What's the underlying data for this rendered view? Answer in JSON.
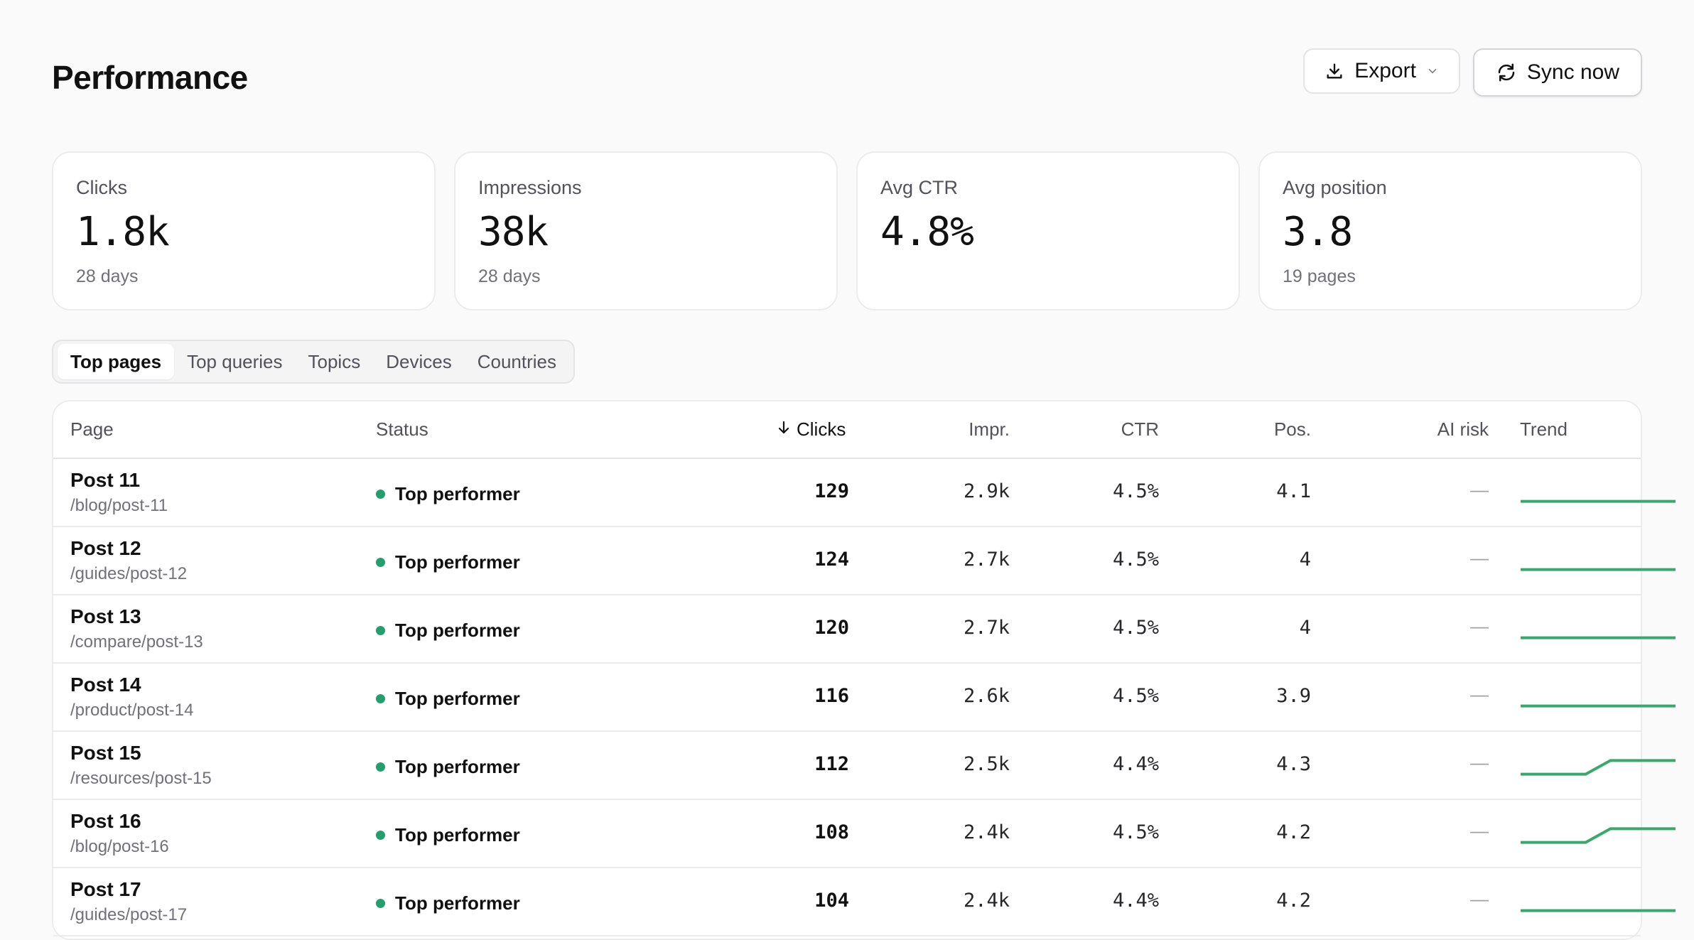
{
  "header": {
    "title": "Performance",
    "export_label": "Export",
    "sync_label": "Sync now"
  },
  "stats": [
    {
      "label": "Clicks",
      "value": "1.8k",
      "sub": "28 days"
    },
    {
      "label": "Impressions",
      "value": "38k",
      "sub": "28 days"
    },
    {
      "label": "Avg CTR",
      "value": "4.8%",
      "sub": ""
    },
    {
      "label": "Avg position",
      "value": "3.8",
      "sub": "19 pages"
    }
  ],
  "tabs": [
    "Top pages",
    "Top queries",
    "Topics",
    "Devices",
    "Countries"
  ],
  "active_tab": "Top pages",
  "table": {
    "columns": {
      "page": "Page",
      "status": "Status",
      "clicks": "Clicks",
      "impr": "Impr.",
      "ctr": "CTR",
      "pos": "Pos.",
      "ai_risk": "AI risk",
      "trend": "Trend"
    },
    "sort_column": "clicks",
    "sort_direction": "desc",
    "rows": [
      {
        "name": "Post 11",
        "path": "/blog/post-11",
        "status": "Top performer",
        "clicks": "129",
        "impr": "2.9k",
        "ctr": "4.5%",
        "pos": "4.1",
        "ai_risk": "—",
        "trend": [
          0.2,
          0.2,
          0.2,
          0.2
        ]
      },
      {
        "name": "Post 12",
        "path": "/guides/post-12",
        "status": "Top performer",
        "clicks": "124",
        "impr": "2.7k",
        "ctr": "4.5%",
        "pos": "4",
        "ai_risk": "—",
        "trend": [
          0.2,
          0.2,
          0.2,
          0.2
        ]
      },
      {
        "name": "Post 13",
        "path": "/compare/post-13",
        "status": "Top performer",
        "clicks": "120",
        "impr": "2.7k",
        "ctr": "4.5%",
        "pos": "4",
        "ai_risk": "—",
        "trend": [
          0.2,
          0.2,
          0.2,
          0.2
        ]
      },
      {
        "name": "Post 14",
        "path": "/product/post-14",
        "status": "Top performer",
        "clicks": "116",
        "impr": "2.6k",
        "ctr": "4.5%",
        "pos": "3.9",
        "ai_risk": "—",
        "trend": [
          0.2,
          0.2,
          0.2,
          0.2
        ]
      },
      {
        "name": "Post 15",
        "path": "/resources/post-15",
        "status": "Top performer",
        "clicks": "112",
        "impr": "2.5k",
        "ctr": "4.4%",
        "pos": "4.3",
        "ai_risk": "—",
        "trend": [
          0.2,
          0.2,
          0.8,
          0.8
        ]
      },
      {
        "name": "Post 16",
        "path": "/blog/post-16",
        "status": "Top performer",
        "clicks": "108",
        "impr": "2.4k",
        "ctr": "4.5%",
        "pos": "4.2",
        "ai_risk": "—",
        "trend": [
          0.2,
          0.2,
          0.8,
          0.8
        ]
      },
      {
        "name": "Post 17",
        "path": "/guides/post-17",
        "status": "Top performer",
        "clicks": "104",
        "impr": "2.4k",
        "ctr": "4.4%",
        "pos": "4.2",
        "ai_risk": "—",
        "trend": [
          0.2,
          0.2,
          0.2,
          0.2
        ]
      }
    ]
  },
  "colors": {
    "accent_green": "#22a06b",
    "trend_line": "#3aa86b"
  }
}
